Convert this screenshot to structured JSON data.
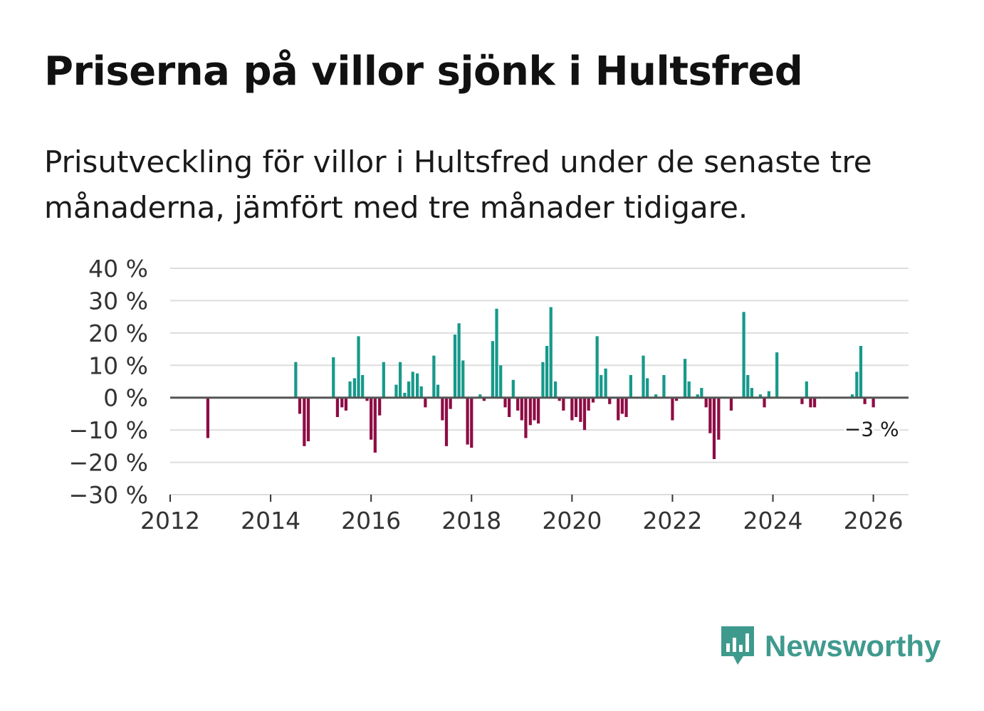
{
  "title": "Priserna på villor sjönk i Hultsfred",
  "subtitle": "Prisutveckling för villor i Hultsfred under de senaste tre månaderna, jämfört med tre månader tidigare.",
  "brand": {
    "name": "Newsworthy",
    "icon": "newsworthy-logo-icon",
    "color": "#3f9a8e"
  },
  "colors": {
    "positive": "#16998b",
    "negative": "#8e0c44",
    "grid": "#dddddd",
    "zero_line": "#555555"
  },
  "chart_data": {
    "type": "bar",
    "title": "Priserna på villor sjönk i Hultsfred",
    "xlabel": "",
    "ylabel": "",
    "ylim": [
      -30,
      40
    ],
    "xlim": [
      2012,
      2026.7
    ],
    "y_ticks": [
      40,
      30,
      20,
      10,
      0,
      -10,
      -20,
      -30
    ],
    "y_tick_labels": [
      "40 %",
      "30 %",
      "20 %",
      "10 %",
      "0 %",
      "−10 %",
      "−20 %",
      "−30 %"
    ],
    "x_ticks": [
      2012,
      2014,
      2016,
      2018,
      2020,
      2022,
      2024,
      2026
    ],
    "x_tick_labels": [
      "2012",
      "2014",
      "2016",
      "2018",
      "2020",
      "2022",
      "2024",
      "2026"
    ],
    "grid": true,
    "unit": "%",
    "annotation": {
      "label": "−3 %",
      "x": 2026.0,
      "y": -3
    },
    "series": [
      {
        "name": "Prisutveckling",
        "points": [
          {
            "x": 2012.75,
            "y": -12.5
          },
          {
            "x": 2014.5,
            "y": 11
          },
          {
            "x": 2014.58,
            "y": -5
          },
          {
            "x": 2014.67,
            "y": -15
          },
          {
            "x": 2014.75,
            "y": -13.5
          },
          {
            "x": 2015.25,
            "y": 12.5
          },
          {
            "x": 2015.33,
            "y": -6
          },
          {
            "x": 2015.42,
            "y": -3
          },
          {
            "x": 2015.5,
            "y": -4
          },
          {
            "x": 2015.58,
            "y": 5
          },
          {
            "x": 2015.67,
            "y": 6
          },
          {
            "x": 2015.75,
            "y": 19
          },
          {
            "x": 2015.83,
            "y": 7
          },
          {
            "x": 2015.92,
            "y": -1
          },
          {
            "x": 2016.0,
            "y": -13
          },
          {
            "x": 2016.08,
            "y": -17
          },
          {
            "x": 2016.17,
            "y": -5.5
          },
          {
            "x": 2016.25,
            "y": 11
          },
          {
            "x": 2016.5,
            "y": 4
          },
          {
            "x": 2016.58,
            "y": 11
          },
          {
            "x": 2016.67,
            "y": 1.5
          },
          {
            "x": 2016.75,
            "y": 5
          },
          {
            "x": 2016.83,
            "y": 8
          },
          {
            "x": 2016.92,
            "y": 7.5
          },
          {
            "x": 2017.0,
            "y": 3.5
          },
          {
            "x": 2017.08,
            "y": -3
          },
          {
            "x": 2017.25,
            "y": 13
          },
          {
            "x": 2017.33,
            "y": 4
          },
          {
            "x": 2017.42,
            "y": -7
          },
          {
            "x": 2017.5,
            "y": -15
          },
          {
            "x": 2017.58,
            "y": -3.5
          },
          {
            "x": 2017.67,
            "y": 19.5
          },
          {
            "x": 2017.75,
            "y": 23
          },
          {
            "x": 2017.83,
            "y": 11.5
          },
          {
            "x": 2017.92,
            "y": -14.5
          },
          {
            "x": 2018.0,
            "y": -15.5
          },
          {
            "x": 2018.17,
            "y": 1
          },
          {
            "x": 2018.25,
            "y": -1
          },
          {
            "x": 2018.42,
            "y": 17.5
          },
          {
            "x": 2018.5,
            "y": 27.5
          },
          {
            "x": 2018.58,
            "y": 10
          },
          {
            "x": 2018.67,
            "y": -3
          },
          {
            "x": 2018.75,
            "y": -6
          },
          {
            "x": 2018.83,
            "y": 5.5
          },
          {
            "x": 2018.92,
            "y": -4
          },
          {
            "x": 2019.0,
            "y": -7
          },
          {
            "x": 2019.08,
            "y": -12.5
          },
          {
            "x": 2019.17,
            "y": -8.5
          },
          {
            "x": 2019.25,
            "y": -7
          },
          {
            "x": 2019.33,
            "y": -8
          },
          {
            "x": 2019.42,
            "y": 11
          },
          {
            "x": 2019.5,
            "y": 16
          },
          {
            "x": 2019.58,
            "y": 28
          },
          {
            "x": 2019.67,
            "y": 5
          },
          {
            "x": 2019.75,
            "y": -1
          },
          {
            "x": 2019.83,
            "y": -4
          },
          {
            "x": 2020.0,
            "y": -7
          },
          {
            "x": 2020.08,
            "y": -6
          },
          {
            "x": 2020.17,
            "y": -7.5
          },
          {
            "x": 2020.25,
            "y": -10
          },
          {
            "x": 2020.33,
            "y": -4
          },
          {
            "x": 2020.42,
            "y": -1.5
          },
          {
            "x": 2020.5,
            "y": 19
          },
          {
            "x": 2020.58,
            "y": 7
          },
          {
            "x": 2020.67,
            "y": 9
          },
          {
            "x": 2020.75,
            "y": -2
          },
          {
            "x": 2020.92,
            "y": -7
          },
          {
            "x": 2021.0,
            "y": -5
          },
          {
            "x": 2021.08,
            "y": -6
          },
          {
            "x": 2021.17,
            "y": 7
          },
          {
            "x": 2021.42,
            "y": 13
          },
          {
            "x": 2021.5,
            "y": 6
          },
          {
            "x": 2021.67,
            "y": 1
          },
          {
            "x": 2021.83,
            "y": 7
          },
          {
            "x": 2022.0,
            "y": -7
          },
          {
            "x": 2022.08,
            "y": -1
          },
          {
            "x": 2022.25,
            "y": 12
          },
          {
            "x": 2022.33,
            "y": 5
          },
          {
            "x": 2022.5,
            "y": 1
          },
          {
            "x": 2022.58,
            "y": 3
          },
          {
            "x": 2022.67,
            "y": -3
          },
          {
            "x": 2022.75,
            "y": -11
          },
          {
            "x": 2022.83,
            "y": -19
          },
          {
            "x": 2022.92,
            "y": -13
          },
          {
            "x": 2023.17,
            "y": -4
          },
          {
            "x": 2023.42,
            "y": 26.5
          },
          {
            "x": 2023.5,
            "y": 7
          },
          {
            "x": 2023.58,
            "y": 3
          },
          {
            "x": 2023.75,
            "y": 1
          },
          {
            "x": 2023.83,
            "y": -3
          },
          {
            "x": 2023.92,
            "y": 2
          },
          {
            "x": 2024.08,
            "y": 14
          },
          {
            "x": 2024.58,
            "y": -2
          },
          {
            "x": 2024.67,
            "y": 5
          },
          {
            "x": 2024.75,
            "y": -3
          },
          {
            "x": 2024.83,
            "y": -3
          },
          {
            "x": 2025.58,
            "y": 1
          },
          {
            "x": 2025.67,
            "y": 8
          },
          {
            "x": 2025.75,
            "y": 16
          },
          {
            "x": 2025.83,
            "y": -2
          },
          {
            "x": 2026.0,
            "y": -3
          }
        ]
      }
    ]
  }
}
